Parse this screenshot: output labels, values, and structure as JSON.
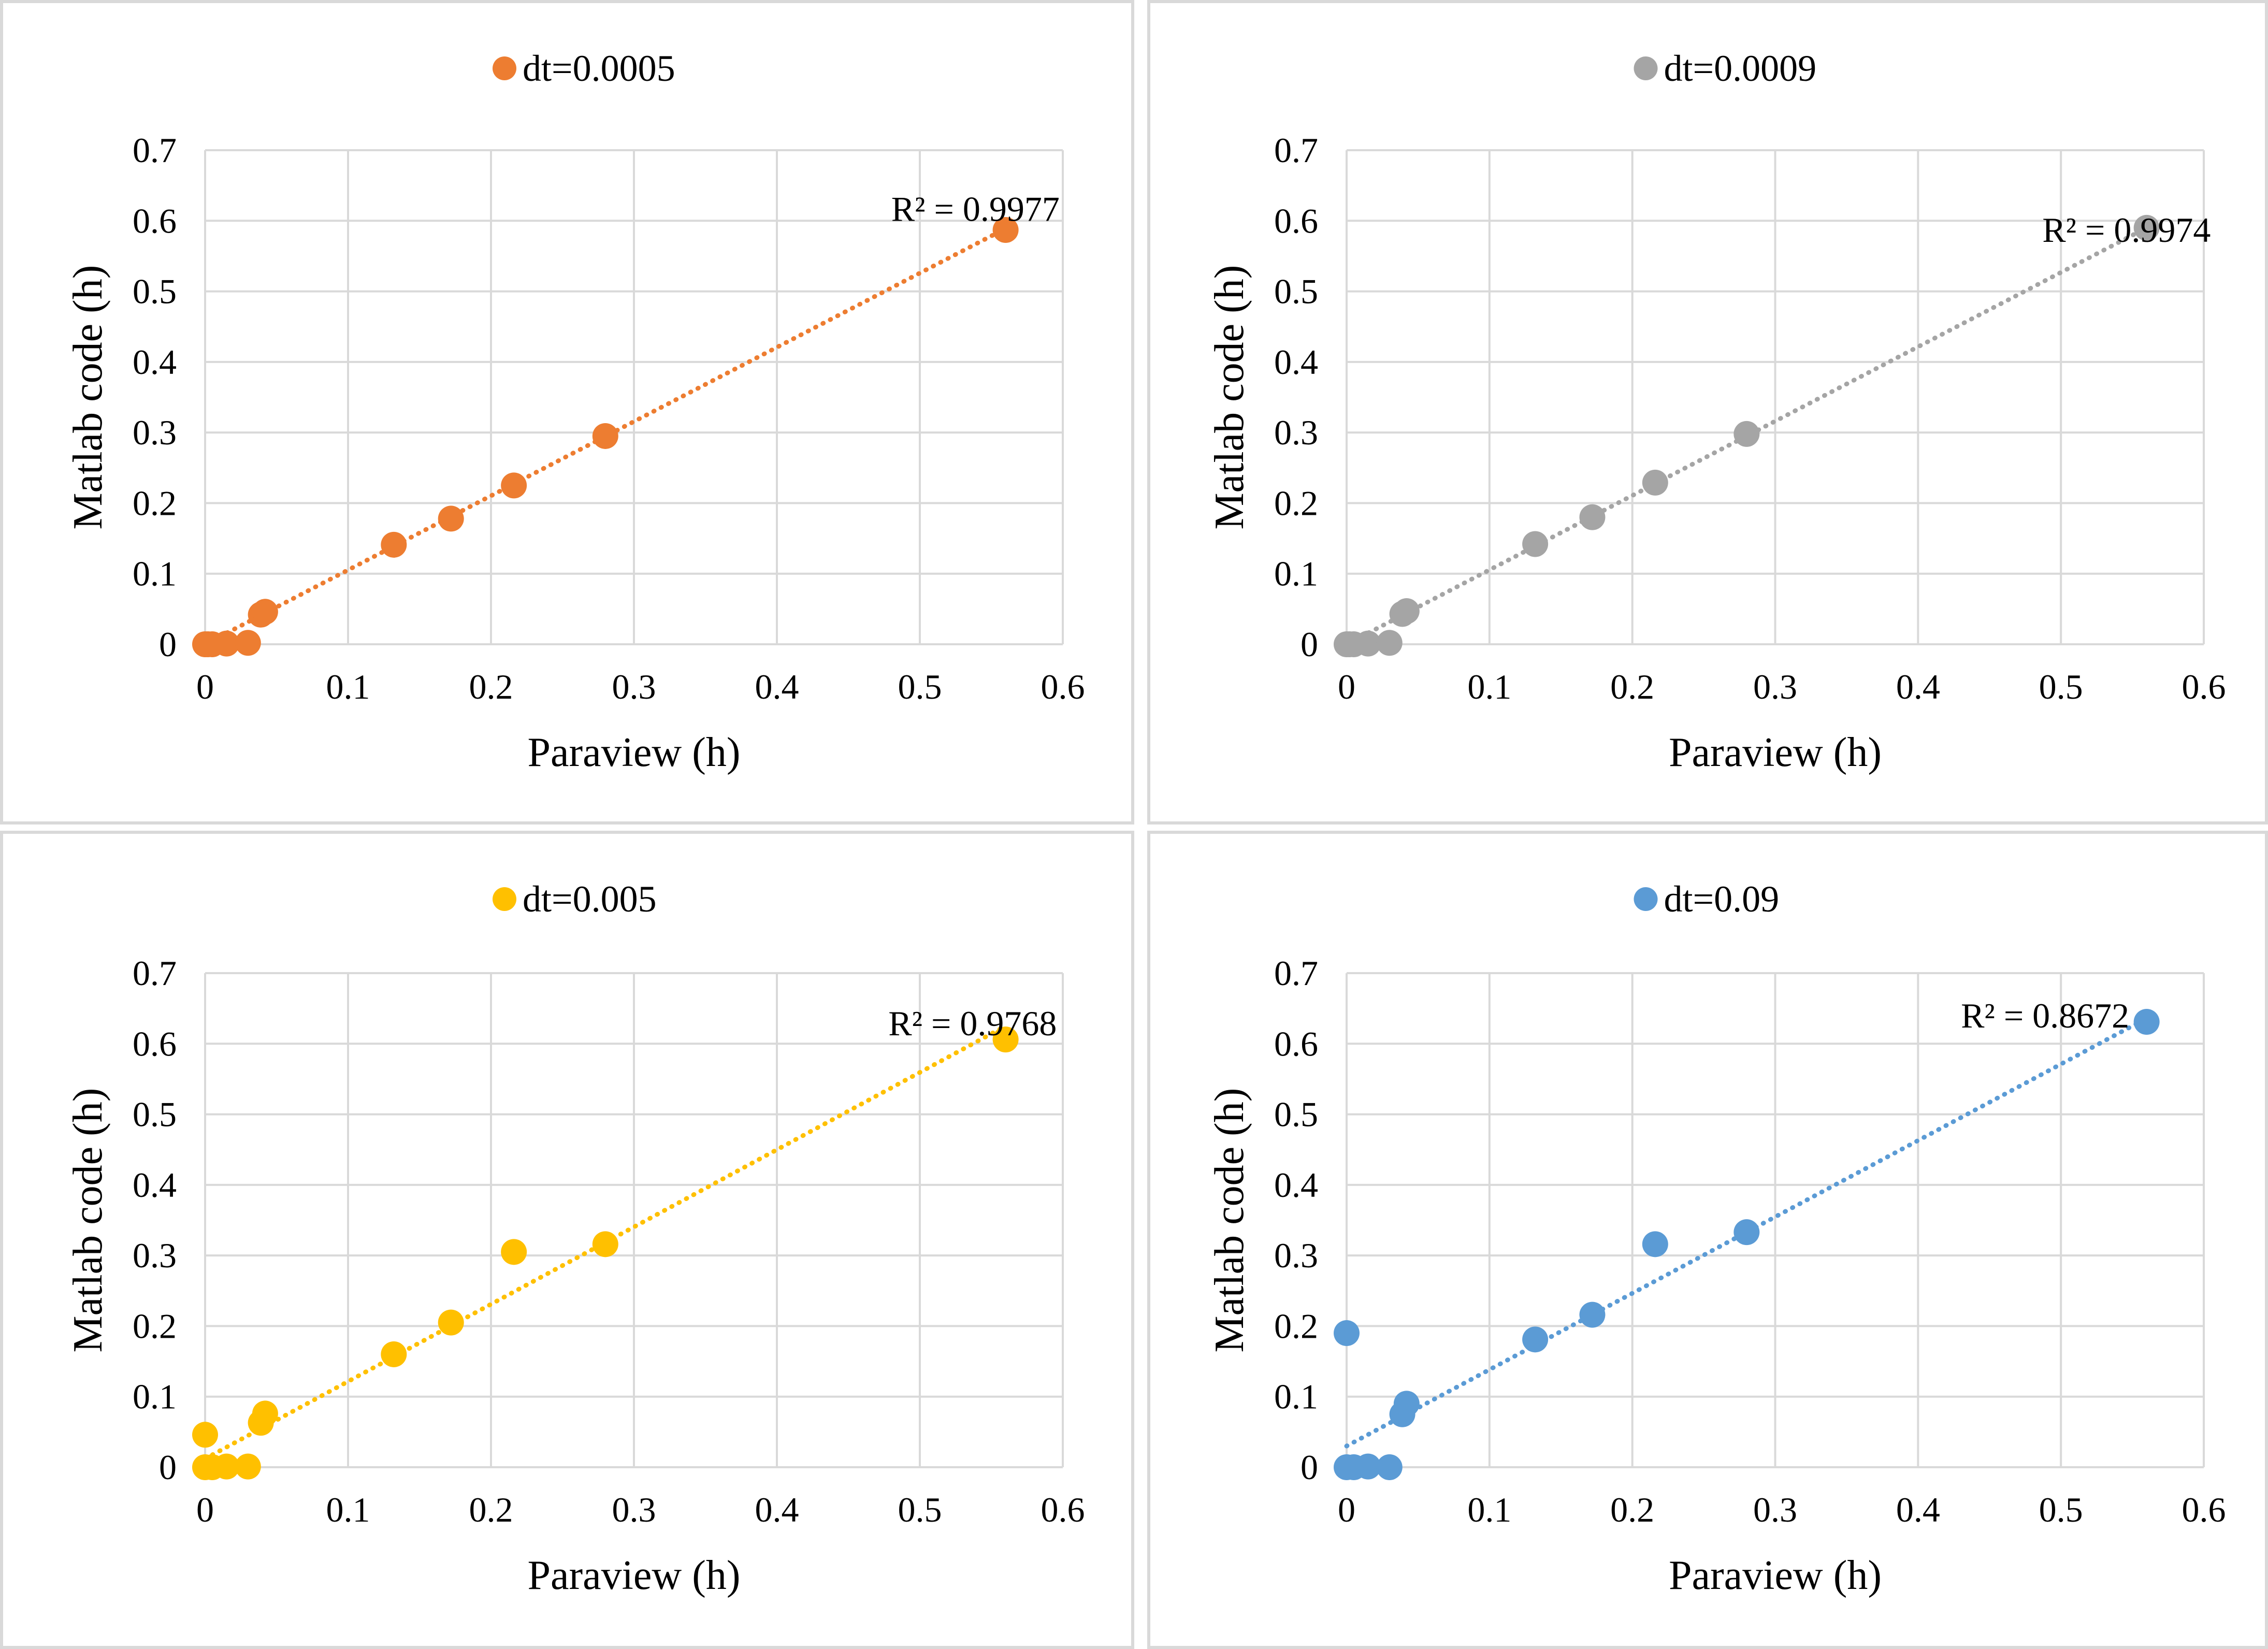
{
  "figure": {
    "rows": 2,
    "cols": 2,
    "frame_color": "#d9d9d9",
    "grid_color": "#d9d9d9"
  },
  "chart_data": [
    {
      "type": "scatter",
      "title": "dt=0.0005",
      "legend": "dt=0.0005",
      "legend_position": "top-center",
      "color": "#ed7d31",
      "xlabel": "Paraview (h)",
      "ylabel": "Matlab code (h)",
      "xlim": [
        0,
        0.6
      ],
      "ylim": [
        0,
        0.7
      ],
      "xticks": [
        "0",
        "0.1",
        "0.2",
        "0.3",
        "0.4",
        "0.5",
        "0.6"
      ],
      "yticks": [
        "0",
        "0.1",
        "0.2",
        "0.3",
        "0.4",
        "0.5",
        "0.6",
        "0.7"
      ],
      "grid": true,
      "points": [
        {
          "x": 0,
          "y": 0
        },
        {
          "x": 0.002,
          "y": 0
        },
        {
          "x": 0.005,
          "y": 0
        },
        {
          "x": 0.015,
          "y": 0.001
        },
        {
          "x": 0.03,
          "y": 0.002
        },
        {
          "x": 0.039,
          "y": 0.042
        },
        {
          "x": 0.042,
          "y": 0.046
        },
        {
          "x": 0.132,
          "y": 0.141
        },
        {
          "x": 0.172,
          "y": 0.178
        },
        {
          "x": 0.216,
          "y": 0.225
        },
        {
          "x": 0.28,
          "y": 0.295
        },
        {
          "x": 0.56,
          "y": 0.587
        }
      ],
      "trendline": {
        "start": [
          0,
          0.0
        ],
        "end": [
          0.56,
          0.589
        ]
      },
      "r2_text": "R² = 0.9977",
      "r2_at": [
        0.48,
        0.6
      ]
    },
    {
      "type": "scatter",
      "title": "dt=0.0009",
      "legend": "dt=0.0009",
      "legend_position": "top-center",
      "color": "#a5a5a5",
      "xlabel": "Paraview (h)",
      "ylabel": "Matlab code (h)",
      "xlim": [
        0,
        0.6
      ],
      "ylim": [
        0,
        0.7
      ],
      "xticks": [
        "0",
        "0.1",
        "0.2",
        "0.3",
        "0.4",
        "0.5",
        "0.6"
      ],
      "yticks": [
        "0",
        "0.1",
        "0.2",
        "0.3",
        "0.4",
        "0.5",
        "0.6",
        "0.7"
      ],
      "grid": true,
      "points": [
        {
          "x": 0,
          "y": 0
        },
        {
          "x": 0.002,
          "y": 0
        },
        {
          "x": 0.005,
          "y": 0
        },
        {
          "x": 0.015,
          "y": 0.001
        },
        {
          "x": 0.03,
          "y": 0.002
        },
        {
          "x": 0.039,
          "y": 0.043
        },
        {
          "x": 0.042,
          "y": 0.047
        },
        {
          "x": 0.132,
          "y": 0.142
        },
        {
          "x": 0.172,
          "y": 0.18
        },
        {
          "x": 0.216,
          "y": 0.229
        },
        {
          "x": 0.28,
          "y": 0.298
        },
        {
          "x": 0.56,
          "y": 0.59
        }
      ],
      "trendline": {
        "start": [
          0,
          0.0
        ],
        "end": [
          0.56,
          0.59
        ]
      },
      "r2_text": "R² = 0.9974",
      "r2_at": [
        0.487,
        0.57
      ]
    },
    {
      "type": "scatter",
      "title": "dt=0.005",
      "legend": "dt=0.005",
      "legend_position": "top-center",
      "color": "#ffc000",
      "xlabel": "Paraview (h)",
      "ylabel": "Matlab code (h)",
      "xlim": [
        0,
        0.6
      ],
      "ylim": [
        0,
        0.7
      ],
      "xticks": [
        "0",
        "0.1",
        "0.2",
        "0.3",
        "0.4",
        "0.5",
        "0.6"
      ],
      "yticks": [
        "0",
        "0.1",
        "0.2",
        "0.3",
        "0.4",
        "0.5",
        "0.6",
        "0.7"
      ],
      "grid": true,
      "points": [
        {
          "x": 0,
          "y": 0.046
        },
        {
          "x": 0,
          "y": 0
        },
        {
          "x": 0.005,
          "y": 0
        },
        {
          "x": 0.015,
          "y": 0.001
        },
        {
          "x": 0.03,
          "y": 0.001
        },
        {
          "x": 0.039,
          "y": 0.063
        },
        {
          "x": 0.042,
          "y": 0.076
        },
        {
          "x": 0.132,
          "y": 0.16
        },
        {
          "x": 0.172,
          "y": 0.205
        },
        {
          "x": 0.216,
          "y": 0.305
        },
        {
          "x": 0.28,
          "y": 0.316
        },
        {
          "x": 0.56,
          "y": 0.606
        }
      ],
      "trendline": {
        "start": [
          0,
          0.012
        ],
        "end": [
          0.56,
          0.625
        ]
      },
      "r2_text": "R² = 0.9768",
      "r2_at": [
        0.478,
        0.612
      ]
    },
    {
      "type": "scatter",
      "title": "dt=0.09",
      "legend": "dt=0.09",
      "legend_position": "top-center",
      "color": "#5b9bd5",
      "xlabel": "Paraview (h)",
      "ylabel": "Matlab code (h)",
      "xlim": [
        0,
        0.6
      ],
      "ylim": [
        0,
        0.7
      ],
      "xticks": [
        "0",
        "0.1",
        "0.2",
        "0.3",
        "0.4",
        "0.5",
        "0.6"
      ],
      "yticks": [
        "0",
        "0.1",
        "0.2",
        "0.3",
        "0.4",
        "0.5",
        "0.6",
        "0.7"
      ],
      "grid": true,
      "points": [
        {
          "x": 0,
          "y": 0.19
        },
        {
          "x": 0,
          "y": 0
        },
        {
          "x": 0.005,
          "y": 0
        },
        {
          "x": 0.015,
          "y": 0.001
        },
        {
          "x": 0.03,
          "y": 0
        },
        {
          "x": 0.039,
          "y": 0.075
        },
        {
          "x": 0.042,
          "y": 0.09
        },
        {
          "x": 0.132,
          "y": 0.181
        },
        {
          "x": 0.172,
          "y": 0.216
        },
        {
          "x": 0.216,
          "y": 0.316
        },
        {
          "x": 0.28,
          "y": 0.333
        },
        {
          "x": 0.56,
          "y": 0.631
        }
      ],
      "trendline": {
        "start": [
          0,
          0.03
        ],
        "end": [
          0.56,
          0.636
        ]
      },
      "r2_text": "R² = 0.8672",
      "r2_at": [
        0.43,
        0.623
      ]
    }
  ]
}
